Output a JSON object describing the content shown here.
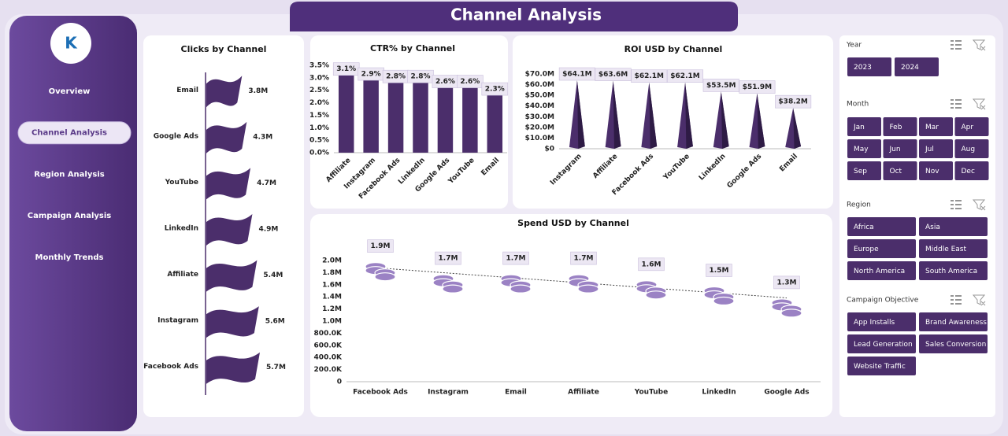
{
  "title": "Channel Analysis",
  "nav": [
    {
      "label": "Overview",
      "selected": false
    },
    {
      "label": "Channel Analysis",
      "selected": true
    },
    {
      "label": "Region Analysis",
      "selected": false
    },
    {
      "label": "Campaign Analysis",
      "selected": false
    },
    {
      "label": "Monthly Trends",
      "selected": false
    }
  ],
  "slicers": [
    {
      "title": "Year",
      "items": [
        "2023",
        "2024"
      ]
    },
    {
      "title": "Month",
      "items": [
        "Jan",
        "Feb",
        "Mar",
        "Apr",
        "May",
        "Jun",
        "Jul",
        "Aug",
        "Sep",
        "Oct",
        "Nov",
        "Dec"
      ]
    },
    {
      "title": "Region",
      "items": [
        "Africa",
        "Asia",
        "Europe",
        "Middle East",
        "North America",
        "South America"
      ]
    },
    {
      "title": "Campaign Objective",
      "items": [
        "App Installs",
        "Brand Awareness",
        "Lead Generation",
        "Sales Conversion",
        "Website Traffic"
      ]
    }
  ],
  "chart_data": [
    {
      "type": "bar",
      "orientation": "horizontal",
      "shape": "flag",
      "title": "Clicks by Channel",
      "color": "#4b2e6b",
      "categories": [
        "Email",
        "Google Ads",
        "YouTube",
        "LinkedIn",
        "Affiliate",
        "Instagram",
        "Facebook Ads"
      ],
      "values": [
        3.8,
        4.3,
        4.7,
        4.9,
        5.4,
        5.6,
        5.7
      ],
      "value_labels": [
        "3.8M",
        "4.3M",
        "4.7M",
        "4.9M",
        "5.4M",
        "5.6M",
        "5.7M"
      ]
    },
    {
      "type": "bar",
      "shape": "rect",
      "title": "CTR% by Channel",
      "color": "#4b2e6b",
      "categories": [
        "Affiliate",
        "Instagram",
        "Facebook Ads",
        "LinkedIn",
        "Google Ads",
        "YouTube",
        "Email"
      ],
      "values": [
        3.1,
        2.9,
        2.8,
        2.8,
        2.6,
        2.6,
        2.3
      ],
      "value_labels": [
        "3.1%",
        "2.9%",
        "2.8%",
        "2.8%",
        "2.6%",
        "2.6%",
        "2.3%"
      ],
      "ylim": [
        0,
        3.5
      ],
      "yticks": [
        {
          "value": 0,
          "label": "0.0%"
        },
        {
          "value": 0.5,
          "label": "0.5%"
        },
        {
          "value": 1,
          "label": "1.0%"
        },
        {
          "value": 1.5,
          "label": "1.5%"
        },
        {
          "value": 2,
          "label": "2.0%"
        },
        {
          "value": 2.5,
          "label": "2.5%"
        },
        {
          "value": 3,
          "label": "3.0%"
        },
        {
          "value": 3.5,
          "label": "3.5%"
        }
      ]
    },
    {
      "type": "bar",
      "shape": "cone",
      "title": "ROI USD by Channel",
      "color": "#4b2e6b",
      "categories": [
        "Instagram",
        "Affiliate",
        "Facebook Ads",
        "YouTube",
        "LinkedIn",
        "Google Ads",
        "Email"
      ],
      "values": [
        64100000,
        63600000,
        62100000,
        62100000,
        53500000,
        51900000,
        38200000
      ],
      "value_labels": [
        "$64.1M",
        "$63.6M",
        "$62.1M",
        "$62.1M",
        "$53.5M",
        "$51.9M",
        "$38.2M"
      ],
      "ylim": [
        0,
        70000000
      ],
      "yticks": [
        {
          "value": 0,
          "label": "$0"
        },
        {
          "value": 10000000,
          "label": "$10.0M"
        },
        {
          "value": 20000000,
          "label": "$20.0M"
        },
        {
          "value": 30000000,
          "label": "$30.0M"
        },
        {
          "value": 40000000,
          "label": "$40.0M"
        },
        {
          "value": 50000000,
          "label": "$50.0M"
        },
        {
          "value": 60000000,
          "label": "$60.0M"
        },
        {
          "value": 70000000,
          "label": "$70.0M"
        }
      ]
    },
    {
      "type": "line",
      "marker": "coins",
      "trendline": true,
      "title": "Spend USD by Channel",
      "color": "#9b82c4",
      "categories": [
        "Facebook Ads",
        "Instagram",
        "Email",
        "Affiliate",
        "YouTube",
        "LinkedIn",
        "Google Ads"
      ],
      "values": [
        1900000,
        1700000,
        1700000,
        1700000,
        1600000,
        1500000,
        1300000
      ],
      "value_labels": [
        "1.9M",
        "1.7M",
        "1.7M",
        "1.7M",
        "1.6M",
        "1.5M",
        "1.3M"
      ],
      "ylim": [
        0,
        2000000
      ],
      "yticks": [
        0,
        {
          "value": 200000,
          "label": "200.0K"
        },
        {
          "value": 400000,
          "label": "400.0K"
        },
        {
          "value": 600000,
          "label": "600.0K"
        },
        {
          "value": 800000,
          "label": "800.0K"
        },
        {
          "value": 1000000,
          "label": "1.0M"
        },
        {
          "value": 1200000,
          "label": "1.2M"
        },
        {
          "value": 1400000,
          "label": "1.4M"
        },
        {
          "value": 1600000,
          "label": "1.6M"
        },
        {
          "value": 1800000,
          "label": "1.8M"
        },
        {
          "value": 2000000,
          "label": "2.0M"
        }
      ]
    }
  ]
}
